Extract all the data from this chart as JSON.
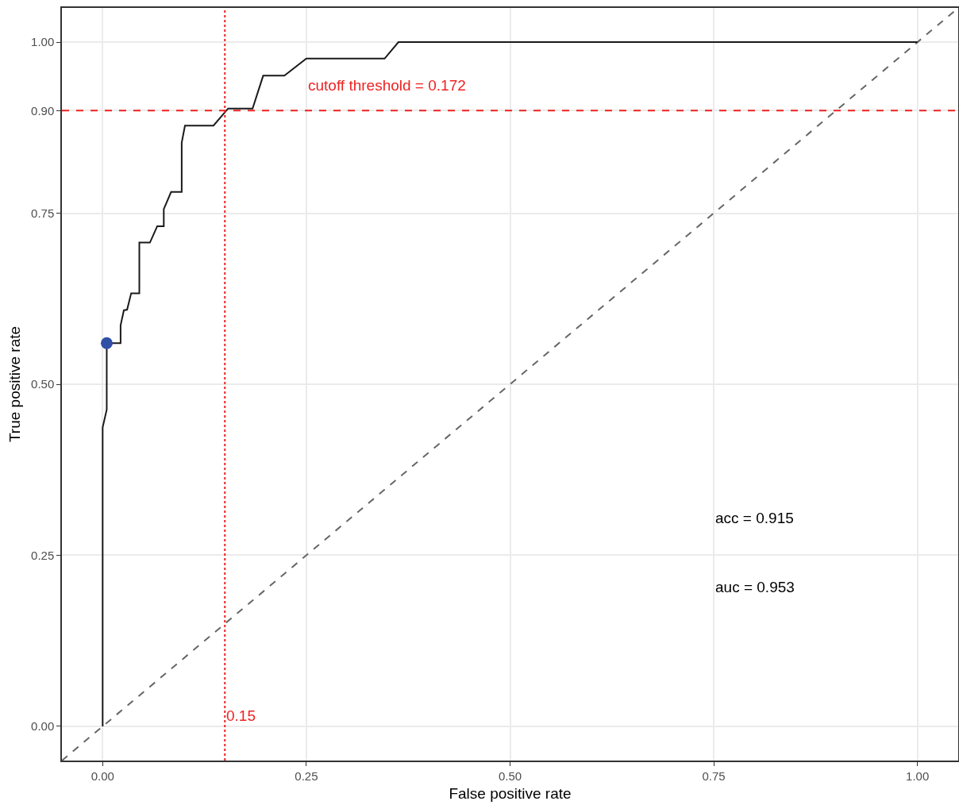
{
  "chart_data": {
    "type": "line",
    "xlabel": "False positive rate",
    "ylabel": "True positive rate",
    "xlim": [
      -0.05,
      1.05
    ],
    "ylim": [
      -0.05,
      1.05
    ],
    "xticks": [
      {
        "value": 0,
        "label": "0.00"
      },
      {
        "value": 0.25,
        "label": "0.25"
      },
      {
        "value": 0.5,
        "label": "0.50"
      },
      {
        "value": 0.75,
        "label": "0.75"
      },
      {
        "value": 1,
        "label": "1.00"
      }
    ],
    "yticks": [
      {
        "value": 0,
        "label": "0.00"
      },
      {
        "value": 0.25,
        "label": "0.25"
      },
      {
        "value": 0.5,
        "label": "0.50"
      },
      {
        "value": 0.75,
        "label": "0.75"
      },
      {
        "value": 0.9,
        "label": "0.90"
      },
      {
        "value": 1,
        "label": "1.00"
      }
    ],
    "grid": true,
    "series": [
      {
        "color": "#666666",
        "line_style": "dashed",
        "marker": "none",
        "x": [
          -0.05,
          1.05
        ],
        "values": [
          -0.05,
          1.05
        ]
      },
      {
        "color": "#1a1a1a",
        "line_style": "solid",
        "marker": "none",
        "x": [
          0,
          0,
          0.005,
          0.005,
          0.022,
          0.022,
          0.026,
          0.03,
          0.035,
          0.045,
          0.045,
          0.058,
          0.067,
          0.075,
          0.075,
          0.084,
          0.097,
          0.097,
          0.101,
          0.136,
          0.154,
          0.184,
          0.197,
          0.223,
          0.25,
          0.346,
          0.363,
          1
        ],
        "values": [
          0,
          0.437,
          0.463,
          0.56,
          0.56,
          0.586,
          0.608,
          0.609,
          0.633,
          0.633,
          0.707,
          0.707,
          0.731,
          0.731,
          0.756,
          0.781,
          0.781,
          0.853,
          0.878,
          0.878,
          0.903,
          0.903,
          0.951,
          0.951,
          0.976,
          0.976,
          1,
          1
        ]
      },
      {
        "type": "scatter",
        "color": "#3050a8",
        "marker": "circle",
        "x": [
          0.005
        ],
        "values": [
          0.56
        ]
      }
    ],
    "ref_lines": [
      {
        "axis": "y",
        "value": 0.9,
        "color": "#ee2222",
        "line_style": "dashed"
      },
      {
        "axis": "x",
        "value": 0.15,
        "label": "0.15",
        "color": "#ee2222",
        "line_style": "dotted"
      }
    ],
    "annotations": [
      "cutoff threshold = 0.172",
      "acc = 0.915",
      "auc = 0.953"
    ]
  }
}
